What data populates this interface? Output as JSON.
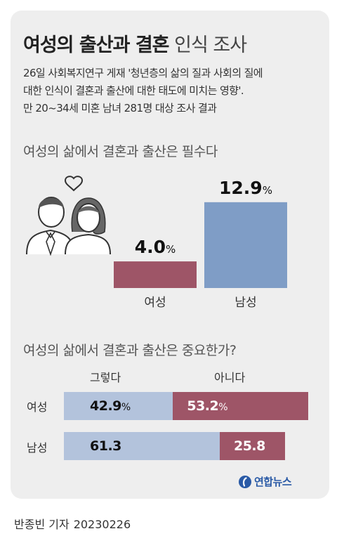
{
  "header": {
    "title_bold": "여성의 출산과 결혼",
    "title_light": "인식 조사",
    "desc_lines": [
      "26일 사회복지연구 게재 '청년층의 삶의 질과 사회의 질에",
      "대한 인식이 결혼과 출산에 대한 태도에 미치는 영향'.",
      "만 20~34세 미혼 남녀 281명 대상 조사 결과"
    ]
  },
  "chart_data": [
    {
      "type": "bar",
      "title": "여성의 삶에서 결혼과 출산은 필수다",
      "categories": [
        "여성",
        "남성"
      ],
      "values": [
        4.0,
        12.9
      ],
      "value_labels": [
        "4.0",
        "12.9"
      ],
      "unit": "%",
      "colors": [
        "#9e5567",
        "#7f9dc6"
      ]
    },
    {
      "type": "bar",
      "orientation": "horizontal-stacked",
      "title": "여성의 삶에서 결혼과 출산은 중요한가?",
      "categories": [
        "여성",
        "남성"
      ],
      "series": [
        {
          "name": "그렇다",
          "values": [
            42.9,
            61.3
          ],
          "value_labels": [
            "42.9",
            "61.3"
          ],
          "color": "#b3c3dc"
        },
        {
          "name": "아니다",
          "values": [
            53.2,
            25.8
          ],
          "value_labels": [
            "53.2",
            "25.8"
          ],
          "color": "#9e5567"
        }
      ],
      "unit_shown_on": "여성",
      "unit": "%"
    }
  ],
  "colors": {
    "card_bg": "#eeeeee",
    "women": "#9e5567",
    "men": "#7f9dc6",
    "yes": "#b3c3dc",
    "logo": "#2a5aa6"
  },
  "illustration": {
    "icon": "couple-with-heart-icon"
  },
  "logo": {
    "icon": "yonhap-logo-icon",
    "text": "연합뉴스"
  },
  "footer": {
    "author": "반종빈 기자",
    "date": "20230226"
  }
}
